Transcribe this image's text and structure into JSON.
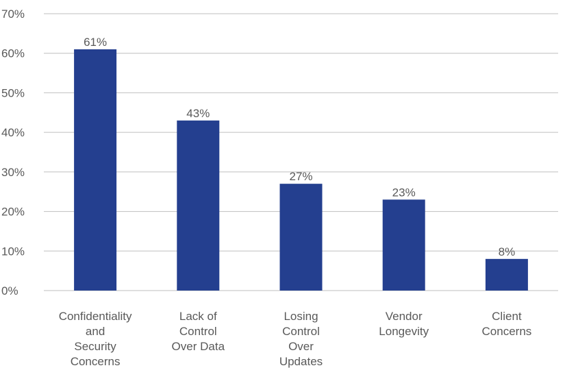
{
  "chart_data": {
    "type": "bar",
    "title": "",
    "xlabel": "",
    "ylabel": "",
    "categories": [
      [
        "Confidentiality",
        "and",
        "Security",
        "Concerns"
      ],
      [
        "Lack of",
        "Control",
        "Over Data"
      ],
      [
        "Losing",
        "Control",
        "Over",
        "Updates"
      ],
      [
        "Vendor",
        "Longevity"
      ],
      [
        "Client",
        "Concerns"
      ]
    ],
    "values": [
      61,
      43,
      27,
      23,
      8
    ],
    "data_labels": [
      "61%",
      "43%",
      "27%",
      "23%",
      "8%"
    ],
    "ylim": [
      0,
      70
    ],
    "yticks": [
      0,
      10,
      20,
      30,
      40,
      50,
      60,
      70
    ],
    "ytick_labels": [
      "0%",
      "10%",
      "20%",
      "30%",
      "40%",
      "50%",
      "60%",
      "70%"
    ],
    "grid": true,
    "legend": "none",
    "bar_color": "#243f8f"
  }
}
